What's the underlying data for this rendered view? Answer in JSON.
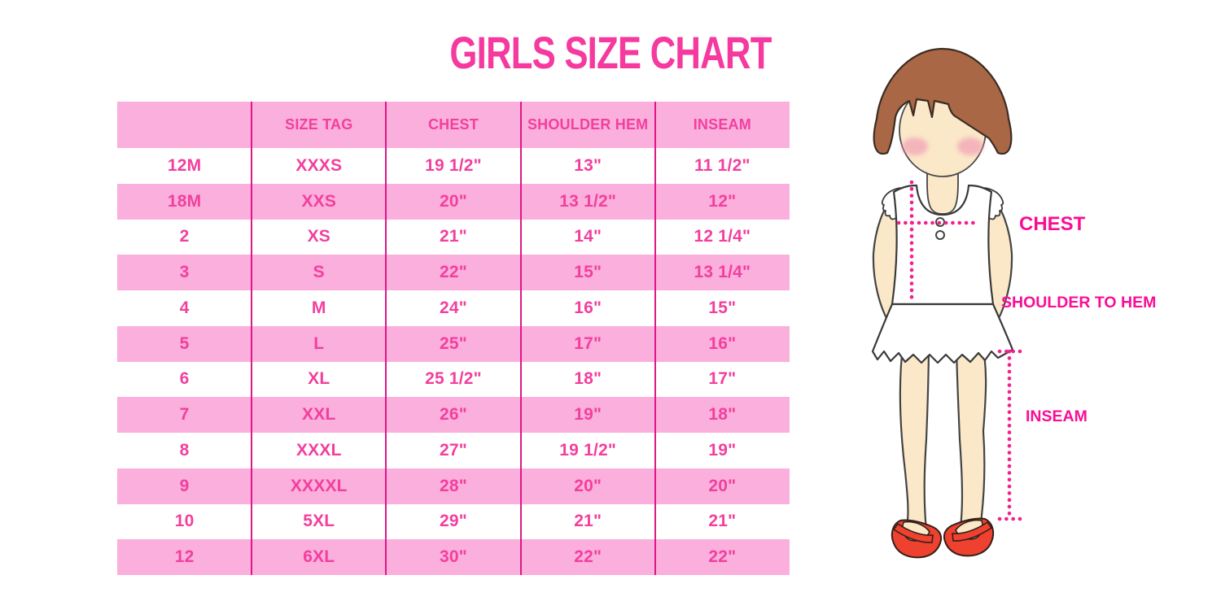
{
  "title": "GIRLS SIZE CHART",
  "chart_data": {
    "type": "table",
    "title": "GIRLS SIZE CHART",
    "columns": [
      "",
      "SIZE TAG",
      "CHEST",
      "SHOULDER HEM",
      "INSEAM"
    ],
    "rows": [
      [
        "12M",
        "XXXS",
        "19 1/2\"",
        "13\"",
        "11 1/2\""
      ],
      [
        "18M",
        "XXS",
        "20\"",
        "13 1/2\"",
        "12\""
      ],
      [
        "2",
        "XS",
        "21\"",
        "14\"",
        "12 1/4\""
      ],
      [
        "3",
        "S",
        "22\"",
        "15\"",
        "13 1/4\""
      ],
      [
        "4",
        "M",
        "24\"",
        "16\"",
        "15\""
      ],
      [
        "5",
        "L",
        "25\"",
        "17\"",
        "16\""
      ],
      [
        "6",
        "XL",
        "25 1/2\"",
        "18\"",
        "17\""
      ],
      [
        "7",
        "XXL",
        "26\"",
        "19\"",
        "18\""
      ],
      [
        "8",
        "XXXL",
        "27\"",
        "19 1/2\"",
        "19\""
      ],
      [
        "9",
        "XXXXL",
        "28\"",
        "20\"",
        "20\""
      ],
      [
        "10",
        "5XL",
        "29\"",
        "21\"",
        "21\""
      ],
      [
        "12",
        "6XL",
        "30\"",
        "22\"",
        "22\""
      ]
    ],
    "layout_hints": {
      "row_striping": "header pink, then rows alternate white/pink starting with white",
      "column_dividers": "magenta vertical lines between all 5 columns, no outer border"
    }
  },
  "diagram": {
    "labels": {
      "chest": "CHEST",
      "shoulder_to_hem": "SHOULDER TO HEM",
      "inseam": "INSEAM"
    }
  },
  "colors": {
    "title_pink": "#F5399F",
    "row_pink": "#FBAFDC",
    "divider_magenta": "#DD1887",
    "table_text_pink": "#F23F9E",
    "label_pink": "#FA0D95",
    "dotted_line_pink": "#F1218F",
    "skin": "#FBE8C8",
    "hair_brown": "#A96746",
    "shoe_red": "#EE4130"
  }
}
